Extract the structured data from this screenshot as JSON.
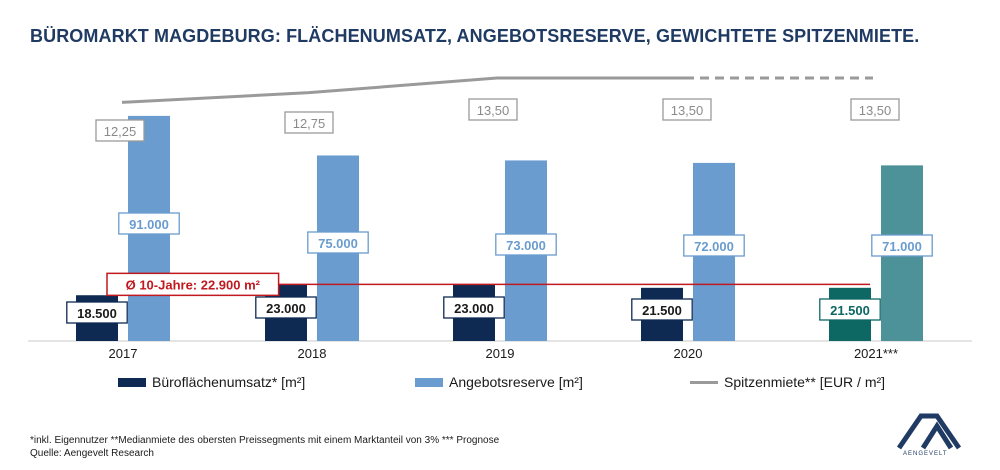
{
  "title": "BÜROMARKT MAGDEBURG: FLÄCHENUMSATZ, ANGEBOTSRESERVE, GEWICHTETE SPITZENMIETE.",
  "chart_data": {
    "type": "bar",
    "categories": [
      "2017",
      "2018",
      "2019",
      "2020",
      "2021***"
    ],
    "series": [
      {
        "name": "Büroflächenumsatz* [m²]",
        "values": [
          18500,
          23000,
          23000,
          21500,
          21500
        ],
        "labels": [
          "18.500",
          "23.000",
          "23.000",
          "21.500",
          "21.500"
        ],
        "colors": [
          "#0f2a52",
          "#0f2a52",
          "#0f2a52",
          "#0f2a52",
          "#0d6763"
        ]
      },
      {
        "name": "Angebotsreserve [m²]",
        "values": [
          91000,
          75000,
          73000,
          72000,
          71000
        ],
        "labels": [
          "91.000",
          "75.000",
          "73.000",
          "72.000",
          "71.000"
        ],
        "colors": [
          "#6a9ccf",
          "#6a9ccf",
          "#6a9ccf",
          "#6a9ccf",
          "#4e9299"
        ]
      },
      {
        "name": "Spitzenmiete** [EUR / m²]",
        "type": "line",
        "values": [
          12.25,
          12.75,
          13.5,
          13.5,
          13.5
        ],
        "labels": [
          "12,25",
          "12,75",
          "13,50",
          "13,50",
          "13,50"
        ],
        "color": "#9a9a9a",
        "forecast_from_index": 3
      }
    ],
    "average": {
      "label": "Ø 10-Jahre: 22.900 m²",
      "value": 22900,
      "color": "#c0191f"
    },
    "axes": {
      "bars_ylim": [
        0,
        95000
      ],
      "rent_ylim": [
        0,
        17.3
      ]
    },
    "grid": false,
    "legend": "bottom"
  },
  "legend": {
    "umsatz": "Büroflächenumsatz* [m²]",
    "reserve": "Angebotsreserve [m²]",
    "miete": "Spitzenmiete** [EUR / m²]"
  },
  "colors": {
    "umsatz": "#0f2a52",
    "reserve": "#6a9ccf",
    "miete": "#9a9a9a"
  },
  "footnotes": {
    "line1": "*inkl. Eigennutzer **Medianmiete des obersten Preissegments mit einem Marktanteil von 3% *** Prognose",
    "line2": "Quelle: Aengevelt Research"
  },
  "logo": {
    "text": "AENGEVELT"
  }
}
